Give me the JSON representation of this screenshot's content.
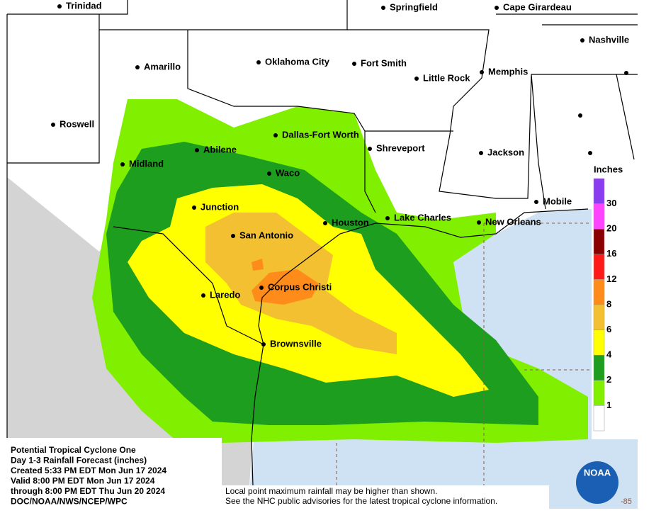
{
  "header": {
    "lines": [
      "Potential Tropical Cyclone One",
      "Day 1-3 Rainfall Forecast (inches)",
      "Created 5:33 PM EDT Mon Jun 17 2024",
      "Valid 8:00 PM EDT Mon Jun 17 2024",
      "through 8:00 PM EDT Thu Jun 20 2024",
      "DOC/NOAA/NWS/NCEP/WPC"
    ]
  },
  "cities": [
    "Trinidad",
    "Springfield",
    "Cape Girardeau",
    "Nashville",
    "Amarillo",
    "Oklahoma City",
    "Fort Smith",
    "Little Rock",
    "Memphis",
    "Roswell",
    "Dallas-Fort Worth",
    "Abilene",
    "Shreveport",
    "Jackson",
    "Midland",
    "Waco",
    "Junction",
    "Mobile",
    "Lake Charles",
    "Houston",
    "San Antonio",
    "New Orleans",
    "Laredo",
    "Corpus Christi",
    "Brownsville"
  ],
  "legend": {
    "title": "Inches",
    "colors": [
      "#8a3cf0",
      "#ff44ff",
      "#8b0000",
      "#ff1a1a",
      "#ff8c1a",
      "#f2c030",
      "#ffff00",
      "#1e9e1e",
      "#80f000",
      "#ffffff"
    ],
    "labels": [
      "30",
      "20",
      "16",
      "12",
      "8",
      "6",
      "4",
      "2",
      "1"
    ]
  },
  "footer": {
    "lines": [
      "Local point maximum rainfall may be higher than shown.",
      "See the NHC public advisories for the latest tropical cyclone information."
    ]
  },
  "logo": "NOAA",
  "corner_label": "-85"
}
